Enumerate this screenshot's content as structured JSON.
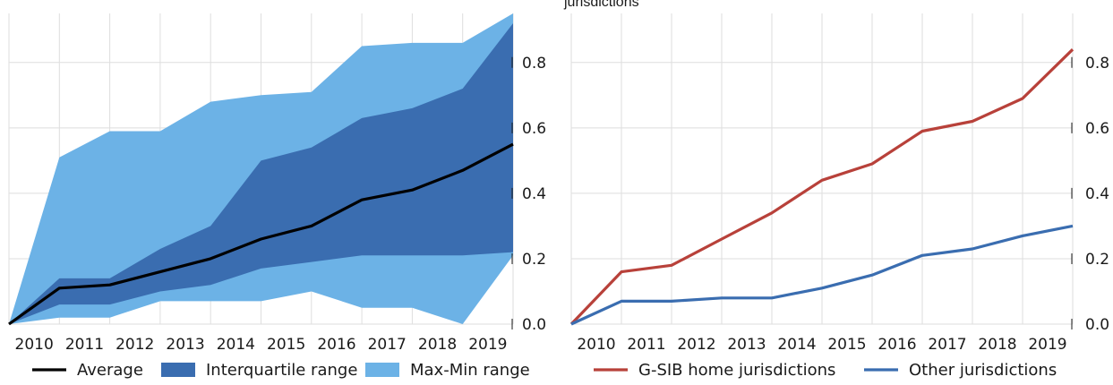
{
  "chart_data": [
    {
      "type": "area",
      "x": [
        "2010",
        "2011",
        "2012",
        "2013",
        "2014",
        "2015",
        "2016",
        "2017",
        "2018",
        "2019",
        "2020"
      ],
      "xticks": [
        "2010",
        "2011",
        "2012",
        "2013",
        "2014",
        "2015",
        "2016",
        "2017",
        "2018",
        "2019"
      ],
      "ylim": [
        0,
        0.95
      ],
      "yticks": [
        "0.0",
        "0.2",
        "0.4",
        "0.6",
        "0.8"
      ],
      "grid": true,
      "legend_position": "bottom",
      "series": [
        {
          "name": "Max-Min range",
          "type": "band",
          "color": "#6cb2e6",
          "upper": [
            0.0,
            0.51,
            0.59,
            0.59,
            0.68,
            0.7,
            0.71,
            0.85,
            0.86,
            0.86,
            0.95
          ],
          "lower": [
            0.0,
            0.02,
            0.02,
            0.07,
            0.07,
            0.07,
            0.1,
            0.05,
            0.05,
            0.0,
            0.21
          ]
        },
        {
          "name": "Interquartile range",
          "type": "band",
          "color": "#3a6db0",
          "upper": [
            0.0,
            0.14,
            0.14,
            0.23,
            0.3,
            0.5,
            0.54,
            0.63,
            0.66,
            0.72,
            0.92
          ],
          "lower": [
            0.0,
            0.06,
            0.06,
            0.1,
            0.12,
            0.17,
            0.19,
            0.21,
            0.21,
            0.21,
            0.22
          ]
        },
        {
          "name": "Average",
          "type": "line",
          "color": "#000000",
          "values": [
            0.0,
            0.11,
            0.12,
            0.16,
            0.2,
            0.26,
            0.3,
            0.38,
            0.41,
            0.47,
            0.55
          ]
        }
      ]
    },
    {
      "type": "line",
      "title": "jurisdictions",
      "x": [
        "2010",
        "2011",
        "2012",
        "2013",
        "2014",
        "2015",
        "2016",
        "2017",
        "2018",
        "2019",
        "2020"
      ],
      "xticks": [
        "2010",
        "2011",
        "2012",
        "2013",
        "2014",
        "2015",
        "2016",
        "2017",
        "2018",
        "2019"
      ],
      "ylim": [
        0,
        0.95
      ],
      "yticks": [
        "0.0",
        "0.2",
        "0.4",
        "0.6",
        "0.8"
      ],
      "grid": true,
      "legend_position": "bottom",
      "series": [
        {
          "name": "G-SIB home jurisdictions",
          "type": "line",
          "color": "#b8413a",
          "values": [
            0.0,
            0.16,
            0.18,
            0.26,
            0.34,
            0.44,
            0.49,
            0.59,
            0.62,
            0.69,
            0.84
          ]
        },
        {
          "name": "Other jurisdictions",
          "type": "line",
          "color": "#3a6db0",
          "values": [
            0.0,
            0.07,
            0.07,
            0.08,
            0.08,
            0.11,
            0.15,
            0.21,
            0.23,
            0.27,
            0.3
          ]
        }
      ]
    }
  ]
}
